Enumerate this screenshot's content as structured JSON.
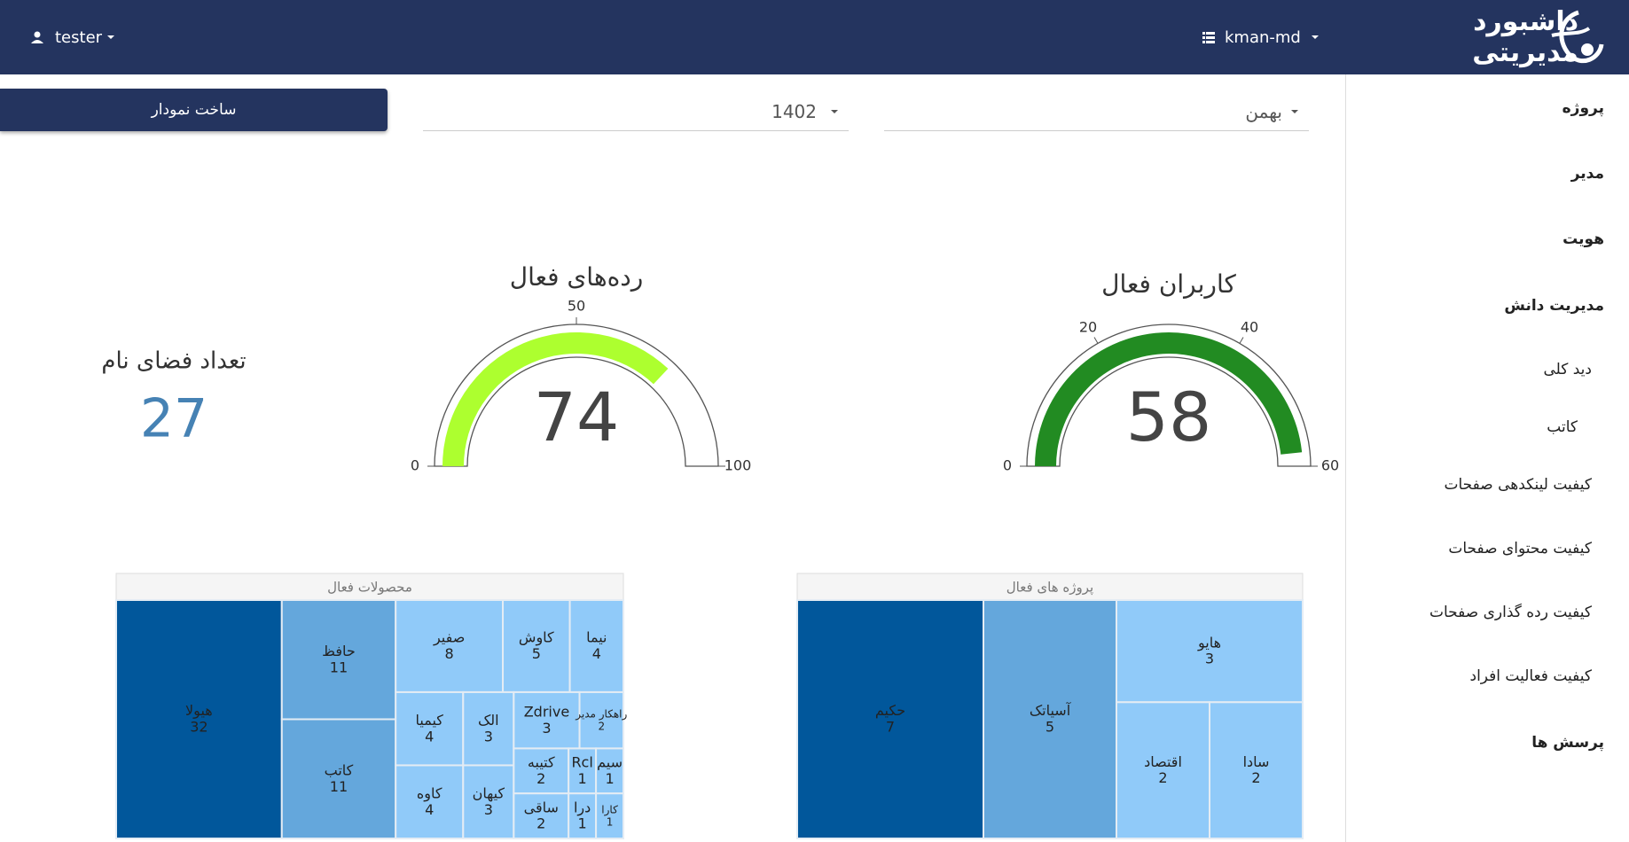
{
  "header": {
    "logo": "داشبورد مدیریتی",
    "workspace": "kman-md",
    "user": "tester"
  },
  "sidebar": {
    "items": [
      "پروژه",
      "مدیر",
      "هویت",
      "مدیریت دانش",
      "دید کلی",
      "کاتب",
      "کیفیت لینکدهی صفحات",
      "کیفیت محتوای صفحات",
      "کیفیت رده گذاری صفحات",
      "کیفیت فعالیت افراد",
      "پرسش ها"
    ]
  },
  "filters": {
    "month": "بهمن",
    "year": "1402"
  },
  "button": "ساخت نمودار",
  "kpi": {
    "title": "تعداد فضای نام",
    "value": 27
  },
  "gauges": [
    {
      "title": "کاربران فعال",
      "value": 58,
      "range": [
        0,
        60
      ],
      "ticks": [
        0,
        20,
        40,
        60
      ],
      "color": "#228b22"
    },
    {
      "title": "رده‌های فعال",
      "value": 74,
      "range": [
        0,
        100
      ],
      "ticks": [
        0,
        50,
        100
      ],
      "color": "#adff2f"
    }
  ],
  "treemaps": [
    {
      "title": "پروژه های فعال",
      "items": [
        {
          "name": "حکیم",
          "value": 7,
          "color": "#01579b"
        },
        {
          "name": "آسیاتک",
          "value": 5,
          "color": "#64a7dc"
        },
        {
          "name": "هایو",
          "value": 3,
          "color": "#90caf9"
        },
        {
          "name": "اقتصاد",
          "value": 2,
          "color": "#90caf9"
        },
        {
          "name": "سادا",
          "value": 2,
          "color": "#90caf9"
        }
      ]
    },
    {
      "title": "محصولات فعال",
      "items": [
        {
          "name": "هیولا",
          "value": 32,
          "color": "#01579b"
        },
        {
          "name": "حافظ",
          "value": 11,
          "color": "#64a7dc"
        },
        {
          "name": "کاتب",
          "value": 11,
          "color": "#64a7dc"
        },
        {
          "name": "صفیر",
          "value": 8,
          "color": "#90caf9"
        },
        {
          "name": "کاوش",
          "value": 5,
          "color": "#90caf9"
        },
        {
          "name": "نیما",
          "value": 4,
          "color": "#90caf9"
        },
        {
          "name": "کیمیا",
          "value": 4,
          "color": "#90caf9"
        },
        {
          "name": "کاوه",
          "value": 4,
          "color": "#90caf9"
        },
        {
          "name": "الک",
          "value": 3,
          "color": "#90caf9"
        },
        {
          "name": "کیهان",
          "value": 3,
          "color": "#90caf9"
        },
        {
          "name": "Zdrive",
          "value": 3,
          "color": "#90caf9"
        },
        {
          "name": "راهکار مدیر",
          "value": 2,
          "color": "#90caf9"
        },
        {
          "name": "کتیبه",
          "value": 2,
          "color": "#90caf9"
        },
        {
          "name": "ساقی",
          "value": 2,
          "color": "#90caf9"
        },
        {
          "name": "Rcl",
          "value": 1,
          "color": "#90caf9"
        },
        {
          "name": "سیم",
          "value": 1,
          "color": "#90caf9"
        },
        {
          "name": "درا",
          "value": 1,
          "color": "#90caf9"
        },
        {
          "name": "کارا",
          "value": 1,
          "color": "#90caf9"
        }
      ]
    }
  ]
}
